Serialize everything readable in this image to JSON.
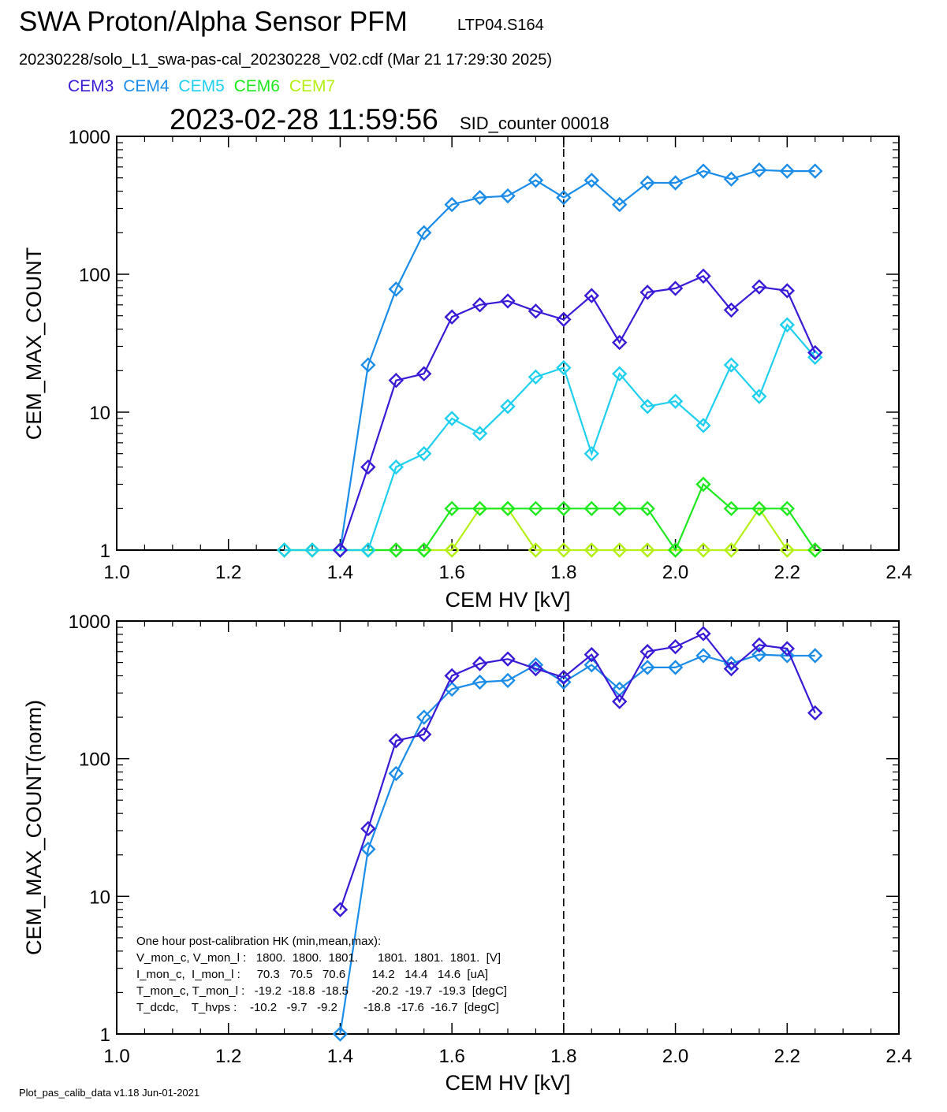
{
  "header": {
    "title": "SWA Proton/Alpha Sensor PFM",
    "title_tag": "LTP04.S164",
    "file_line": "20230228/solo_L1_swa-pas-cal_20230228_V02.cdf  (Mar 21 17:29:30 2025)",
    "timestamp": "2023-02-28 11:59:56",
    "sid": "SID_counter 00018"
  },
  "legend": [
    {
      "label": "CEM3",
      "color": "#3a1ad6"
    },
    {
      "label": "CEM4",
      "color": "#1b8ce8"
    },
    {
      "label": "CEM5",
      "color": "#1fd0ee"
    },
    {
      "label": "CEM6",
      "color": "#1ee81e"
    },
    {
      "label": "CEM7",
      "color": "#b4f014"
    }
  ],
  "footer": "Plot_pas_calib_data v1.18 Jun-01-2021",
  "hk_box": {
    "lines": [
      "One hour post-calibration HK (min,mean,max):",
      "V_mon_c, V_mon_l :   1800.  1800.  1801.      1801.  1801.  1801.  [V]",
      "I_mon_c,  I_mon_l :     70.3   70.5   70.6        14.2   14.4   14.6  [uA]",
      "T_mon_c, T_mon_l :   -19.2  -18.8  -18.5       -20.2  -19.7  -19.3  [degC]",
      "T_dcdc,    T_hvps :    -10.2   -9.7   -9.2        -18.8  -17.6  -16.7  [degC]"
    ]
  },
  "chart_data": [
    {
      "type": "line",
      "xlabel": "CEM HV [kV]",
      "ylabel": "CEM_MAX_COUNT",
      "xlim": [
        1.0,
        2.4
      ],
      "ylim": [
        1,
        1000
      ],
      "yscale": "log",
      "xticks": [
        "1.0",
        "1.2",
        "1.4",
        "1.6",
        "1.8",
        "2.0",
        "2.2",
        "2.4"
      ],
      "yticks": [
        "1",
        "10",
        "100",
        "1000"
      ],
      "vline_x": 1.8,
      "series": [
        {
          "name": "CEM3",
          "color": "#3a1ad6",
          "x": [
            1.4,
            1.45,
            1.5,
            1.55,
            1.6,
            1.65,
            1.7,
            1.75,
            1.8,
            1.85,
            1.9,
            1.95,
            2.0,
            2.05,
            2.1,
            2.15,
            2.2,
            2.25
          ],
          "y": [
            1,
            4,
            17,
            19,
            49,
            60,
            64,
            54,
            47,
            70,
            32,
            74,
            79,
            97,
            55,
            81,
            76,
            27
          ]
        },
        {
          "name": "CEM4",
          "color": "#1b8ce8",
          "x": [
            1.4,
            1.45,
            1.5,
            1.55,
            1.6,
            1.65,
            1.7,
            1.75,
            1.8,
            1.85,
            1.9,
            1.95,
            2.0,
            2.05,
            2.1,
            2.15,
            2.2,
            2.25
          ],
          "y": [
            1,
            22,
            78,
            200,
            320,
            360,
            370,
            480,
            360,
            480,
            320,
            460,
            460,
            560,
            490,
            570,
            560,
            560
          ]
        },
        {
          "name": "CEM5",
          "color": "#1fd0ee",
          "x": [
            1.3,
            1.35,
            1.4,
            1.45,
            1.5,
            1.55,
            1.6,
            1.65,
            1.7,
            1.75,
            1.8,
            1.85,
            1.9,
            1.95,
            2.0,
            2.05,
            2.1,
            2.15,
            2.2,
            2.25
          ],
          "y": [
            1,
            1,
            1,
            1,
            4,
            5,
            9,
            7,
            11,
            18,
            21,
            5,
            19,
            11,
            12,
            8,
            22,
            13,
            43,
            25
          ]
        },
        {
          "name": "CEM6",
          "color": "#1ee81e",
          "x": [
            1.3,
            1.35,
            1.4,
            1.45,
            1.5,
            1.55,
            1.6,
            1.65,
            1.7,
            1.75,
            1.8,
            1.85,
            1.9,
            1.95,
            2.0,
            2.05,
            2.1,
            2.15,
            2.2,
            2.25
          ],
          "y": [
            1,
            1,
            1,
            1,
            1,
            1,
            2,
            2,
            2,
            2,
            2,
            2,
            2,
            2,
            1,
            3,
            2,
            2,
            2,
            1
          ]
        },
        {
          "name": "CEM7",
          "color": "#b4f014",
          "x": [
            1.3,
            1.35,
            1.4,
            1.45,
            1.5,
            1.55,
            1.6,
            1.65,
            1.7,
            1.75,
            1.8,
            1.85,
            1.9,
            1.95,
            2.0,
            2.05,
            2.1,
            2.15,
            2.2,
            2.25
          ],
          "y": [
            1,
            1,
            1,
            1,
            1,
            1,
            1,
            2,
            2,
            1,
            1,
            1,
            1,
            1,
            1,
            1,
            1,
            2,
            1,
            1
          ]
        }
      ]
    },
    {
      "type": "line",
      "xlabel": "CEM HV [kV]",
      "ylabel": "CEM_MAX_COUNT(norm)",
      "xlim": [
        1.0,
        2.4
      ],
      "ylim": [
        1,
        1000
      ],
      "yscale": "log",
      "xticks": [
        "1.0",
        "1.2",
        "1.4",
        "1.6",
        "1.8",
        "2.0",
        "2.2",
        "2.4"
      ],
      "yticks": [
        "1",
        "10",
        "100",
        "1000"
      ],
      "vline_x": 1.8,
      "series": [
        {
          "name": "CEM3",
          "color": "#3a1ad6",
          "x": [
            1.4,
            1.45,
            1.5,
            1.55,
            1.6,
            1.65,
            1.7,
            1.75,
            1.8,
            1.85,
            1.9,
            1.95,
            2.0,
            2.05,
            2.1,
            2.15,
            2.2,
            2.25
          ],
          "y": [
            8,
            31,
            135,
            150,
            400,
            490,
            530,
            450,
            390,
            570,
            260,
            600,
            650,
            810,
            450,
            670,
            630,
            215
          ]
        },
        {
          "name": "CEM4",
          "color": "#1b8ce8",
          "x": [
            1.4,
            1.45,
            1.5,
            1.55,
            1.6,
            1.65,
            1.7,
            1.75,
            1.8,
            1.85,
            1.9,
            1.95,
            2.0,
            2.05,
            2.1,
            2.15,
            2.2,
            2.25
          ],
          "y": [
            1,
            22,
            78,
            200,
            320,
            360,
            370,
            480,
            360,
            480,
            320,
            460,
            460,
            560,
            490,
            570,
            560,
            560
          ]
        }
      ]
    }
  ]
}
